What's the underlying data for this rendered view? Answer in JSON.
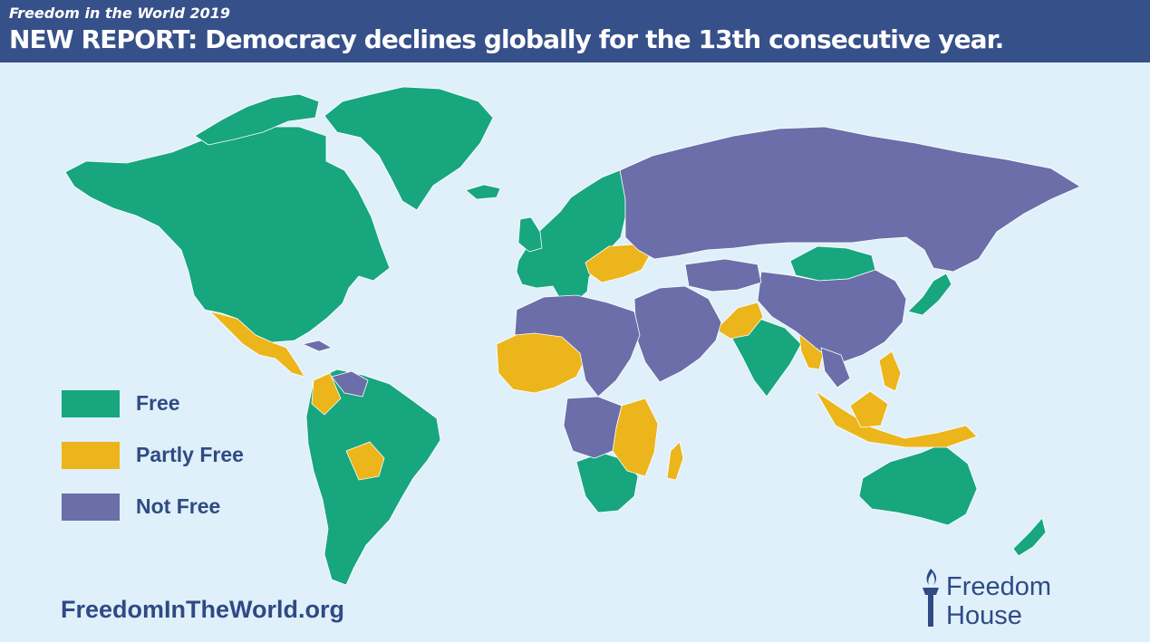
{
  "header": {
    "kicker": "Freedom in the World 2019",
    "headline": "NEW REPORT: Democracy declines globally for the 13th consecutive year."
  },
  "legend": {
    "items": [
      {
        "label": "Free",
        "color": "#17a67e"
      },
      {
        "label": "Partly Free",
        "color": "#ebb51b"
      },
      {
        "label": "Not Free",
        "color": "#6b6ea8"
      }
    ]
  },
  "map": {
    "ocean_color": "#dff0fa",
    "border_color": "#ffffff",
    "regions": [
      {
        "name": "North America",
        "status": "Free"
      },
      {
        "name": "Mexico & Central America",
        "status": "Partly Free"
      },
      {
        "name": "South America",
        "status": "Free"
      },
      {
        "name": "Venezuela",
        "status": "Not Free"
      },
      {
        "name": "Bolivia",
        "status": "Partly Free"
      },
      {
        "name": "Europe",
        "status": "Free"
      },
      {
        "name": "Russia",
        "status": "Not Free"
      },
      {
        "name": "China",
        "status": "Not Free"
      },
      {
        "name": "Mongolia",
        "status": "Free"
      },
      {
        "name": "India",
        "status": "Free"
      },
      {
        "name": "Middle East",
        "status": "Not Free"
      },
      {
        "name": "West Africa",
        "status": "Partly Free"
      },
      {
        "name": "East Africa",
        "status": "Partly Free"
      },
      {
        "name": "Southern Africa",
        "status": "Free"
      },
      {
        "name": "Indonesia",
        "status": "Partly Free"
      },
      {
        "name": "Australia",
        "status": "Free"
      },
      {
        "name": "New Zealand",
        "status": "Free"
      }
    ]
  },
  "footer": {
    "website": "FreedomInTheWorld.org",
    "brand_line1": "Freedom",
    "brand_line2": "House",
    "brand_icon": "torch-icon"
  }
}
